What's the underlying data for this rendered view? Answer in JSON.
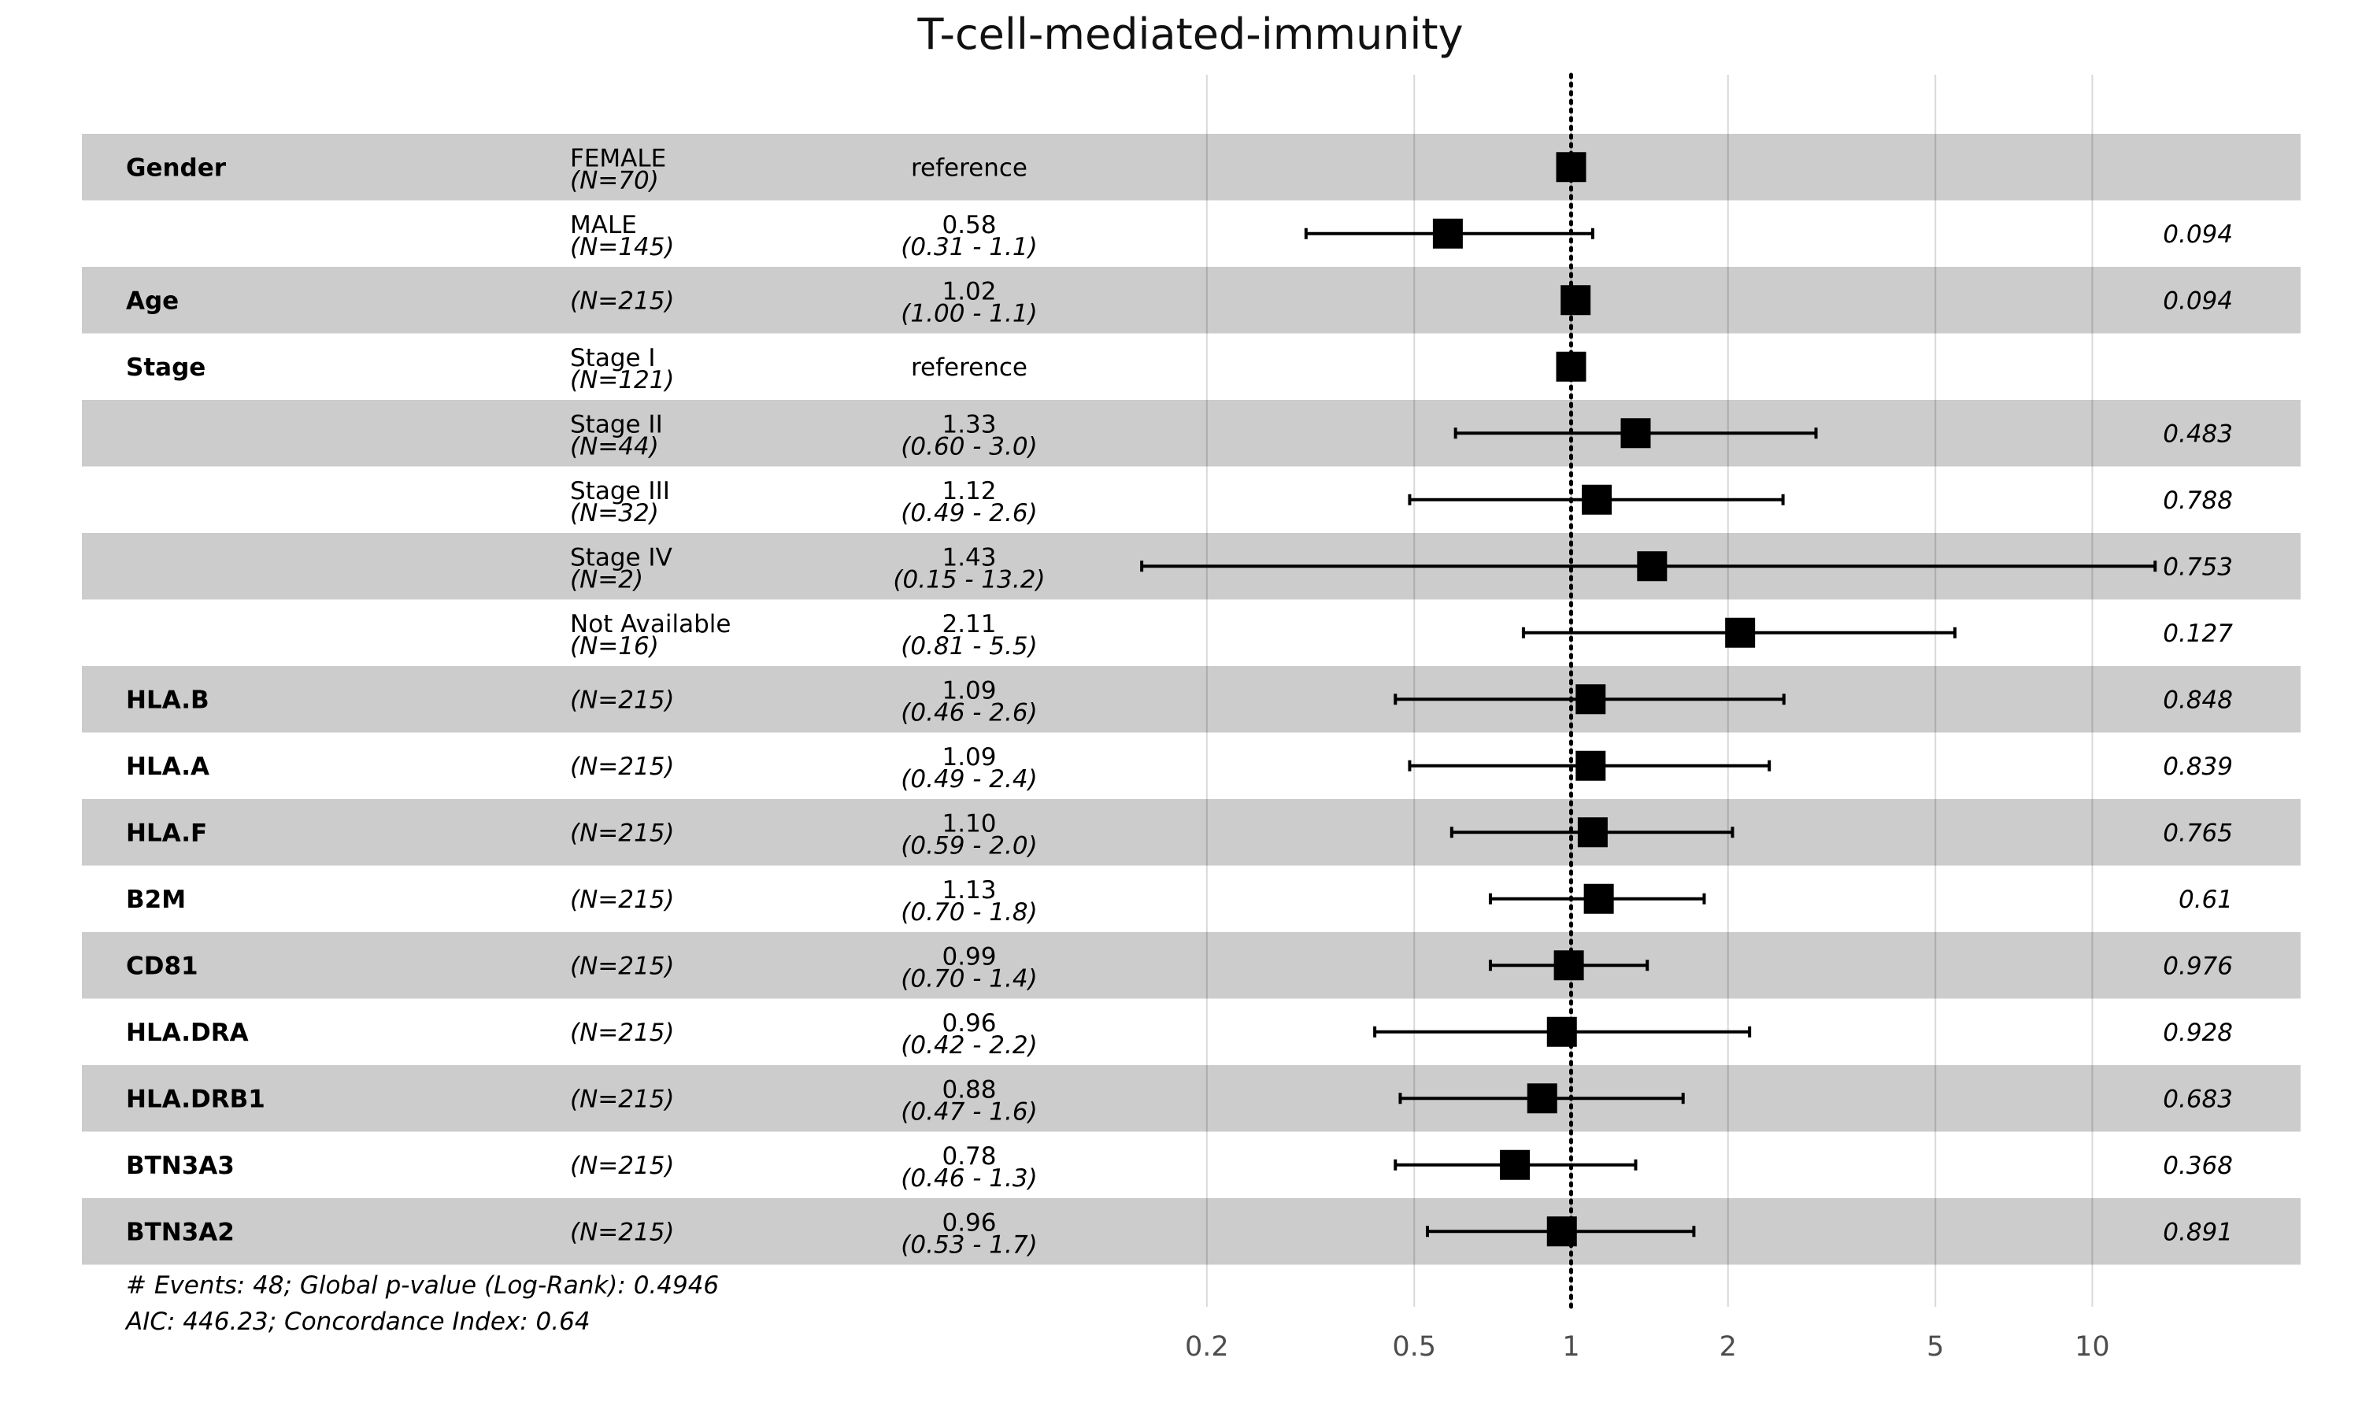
{
  "chart_data": {
    "type": "forest",
    "title": "T-cell-mediated-immunity",
    "x_scale": "log",
    "xlim": [
      0.126,
      25.1
    ],
    "x_ticks": [
      {
        "value": 0.2,
        "label": "0.2"
      },
      {
        "value": 0.5,
        "label": "0.5"
      },
      {
        "value": 1,
        "label": "1"
      },
      {
        "value": 2,
        "label": "2"
      },
      {
        "value": 5,
        "label": "5"
      },
      {
        "value": 10,
        "label": "10"
      }
    ],
    "reference_line": 1,
    "grid": true,
    "colors": {
      "band_shaded": "#cccccc",
      "band_plain": "#ffffff",
      "marker": "#000000",
      "gridline": "#d9d9d9"
    },
    "rows": [
      {
        "var": "Gender",
        "level": "FEMALE",
        "n": "(N=70)",
        "hr_text": "reference",
        "ci_text": "",
        "p": "",
        "hr": 1,
        "lo": null,
        "hi": null,
        "shaded": true
      },
      {
        "var": "",
        "level": "MALE",
        "n": "(N=145)",
        "hr_text": "0.58",
        "ci_text": "(0.31 -  1.1)",
        "p": "0.094",
        "hr": 0.58,
        "lo": 0.31,
        "hi": 1.1,
        "shaded": false
      },
      {
        "var": "Age",
        "level": "",
        "n": "(N=215)",
        "hr_text": "1.02",
        "ci_text": "(1.00 -  1.1)",
        "p": "0.094",
        "hr": 1.02,
        "lo": 1.0,
        "hi": 1.05,
        "shaded": true
      },
      {
        "var": "Stage",
        "level": "Stage I",
        "n": "(N=121)",
        "hr_text": "reference",
        "ci_text": "",
        "p": "",
        "hr": 1,
        "lo": null,
        "hi": null,
        "shaded": false
      },
      {
        "var": "",
        "level": "Stage II",
        "n": "(N=44)",
        "hr_text": "1.33",
        "ci_text": "(0.60 -  3.0)",
        "p": "0.483",
        "hr": 1.33,
        "lo": 0.6,
        "hi": 2.95,
        "shaded": true
      },
      {
        "var": "",
        "level": "Stage III",
        "n": "(N=32)",
        "hr_text": "1.12",
        "ci_text": "(0.49 -  2.6)",
        "p": "0.788",
        "hr": 1.12,
        "lo": 0.49,
        "hi": 2.55,
        "shaded": false
      },
      {
        "var": "",
        "level": "Stage IV",
        "n": "(N=2)",
        "hr_text": "1.43",
        "ci_text": "(0.15 - 13.2)",
        "p": "0.753",
        "hr": 1.43,
        "lo": 0.15,
        "hi": 13.2,
        "shaded": true
      },
      {
        "var": "",
        "level": "Not Available",
        "n": "(N=16)",
        "hr_text": "2.11",
        "ci_text": "(0.81 -  5.5)",
        "p": "0.127",
        "hr": 2.11,
        "lo": 0.81,
        "hi": 5.45,
        "shaded": false
      },
      {
        "var": "HLA.B",
        "level": "",
        "n": "(N=215)",
        "hr_text": "1.09",
        "ci_text": "(0.46 -  2.6)",
        "p": "0.848",
        "hr": 1.09,
        "lo": 0.46,
        "hi": 2.56,
        "shaded": true
      },
      {
        "var": "HLA.A",
        "level": "",
        "n": "(N=215)",
        "hr_text": "1.09",
        "ci_text": "(0.49 -  2.4)",
        "p": "0.839",
        "hr": 1.09,
        "lo": 0.49,
        "hi": 2.4,
        "shaded": false
      },
      {
        "var": "HLA.F",
        "level": "",
        "n": "(N=215)",
        "hr_text": "1.10",
        "ci_text": "(0.59 -  2.0)",
        "p": "0.765",
        "hr": 1.1,
        "lo": 0.59,
        "hi": 2.04,
        "shaded": true
      },
      {
        "var": "B2M",
        "level": "",
        "n": "(N=215)",
        "hr_text": "1.13",
        "ci_text": "(0.70 -  1.8)",
        "p": "0.61",
        "hr": 1.13,
        "lo": 0.7,
        "hi": 1.8,
        "shaded": false
      },
      {
        "var": "CD81",
        "level": "",
        "n": "(N=215)",
        "hr_text": "0.99",
        "ci_text": "(0.70 -  1.4)",
        "p": "0.976",
        "hr": 0.99,
        "lo": 0.7,
        "hi": 1.4,
        "shaded": true
      },
      {
        "var": "HLA.DRA",
        "level": "",
        "n": "(N=215)",
        "hr_text": "0.96",
        "ci_text": "(0.42 -  2.2)",
        "p": "0.928",
        "hr": 0.96,
        "lo": 0.42,
        "hi": 2.2,
        "shaded": false
      },
      {
        "var": "HLA.DRB1",
        "level": "",
        "n": "(N=215)",
        "hr_text": "0.88",
        "ci_text": "(0.47 -  1.6)",
        "p": "0.683",
        "hr": 0.88,
        "lo": 0.47,
        "hi": 1.64,
        "shaded": true
      },
      {
        "var": "BTN3A3",
        "level": "",
        "n": "(N=215)",
        "hr_text": "0.78",
        "ci_text": "(0.46 -  1.3)",
        "p": "0.368",
        "hr": 0.78,
        "lo": 0.46,
        "hi": 1.33,
        "shaded": false
      },
      {
        "var": "BTN3A2",
        "level": "",
        "n": "(N=215)",
        "hr_text": "0.96",
        "ci_text": "(0.53 -  1.7)",
        "p": "0.891",
        "hr": 0.96,
        "lo": 0.53,
        "hi": 1.72,
        "shaded": true
      }
    ],
    "footnotes": [
      "# Events: 48; Global p-value (Log-Rank): 0.4946",
      "AIC: 446.23; Concordance Index: 0.64"
    ]
  }
}
